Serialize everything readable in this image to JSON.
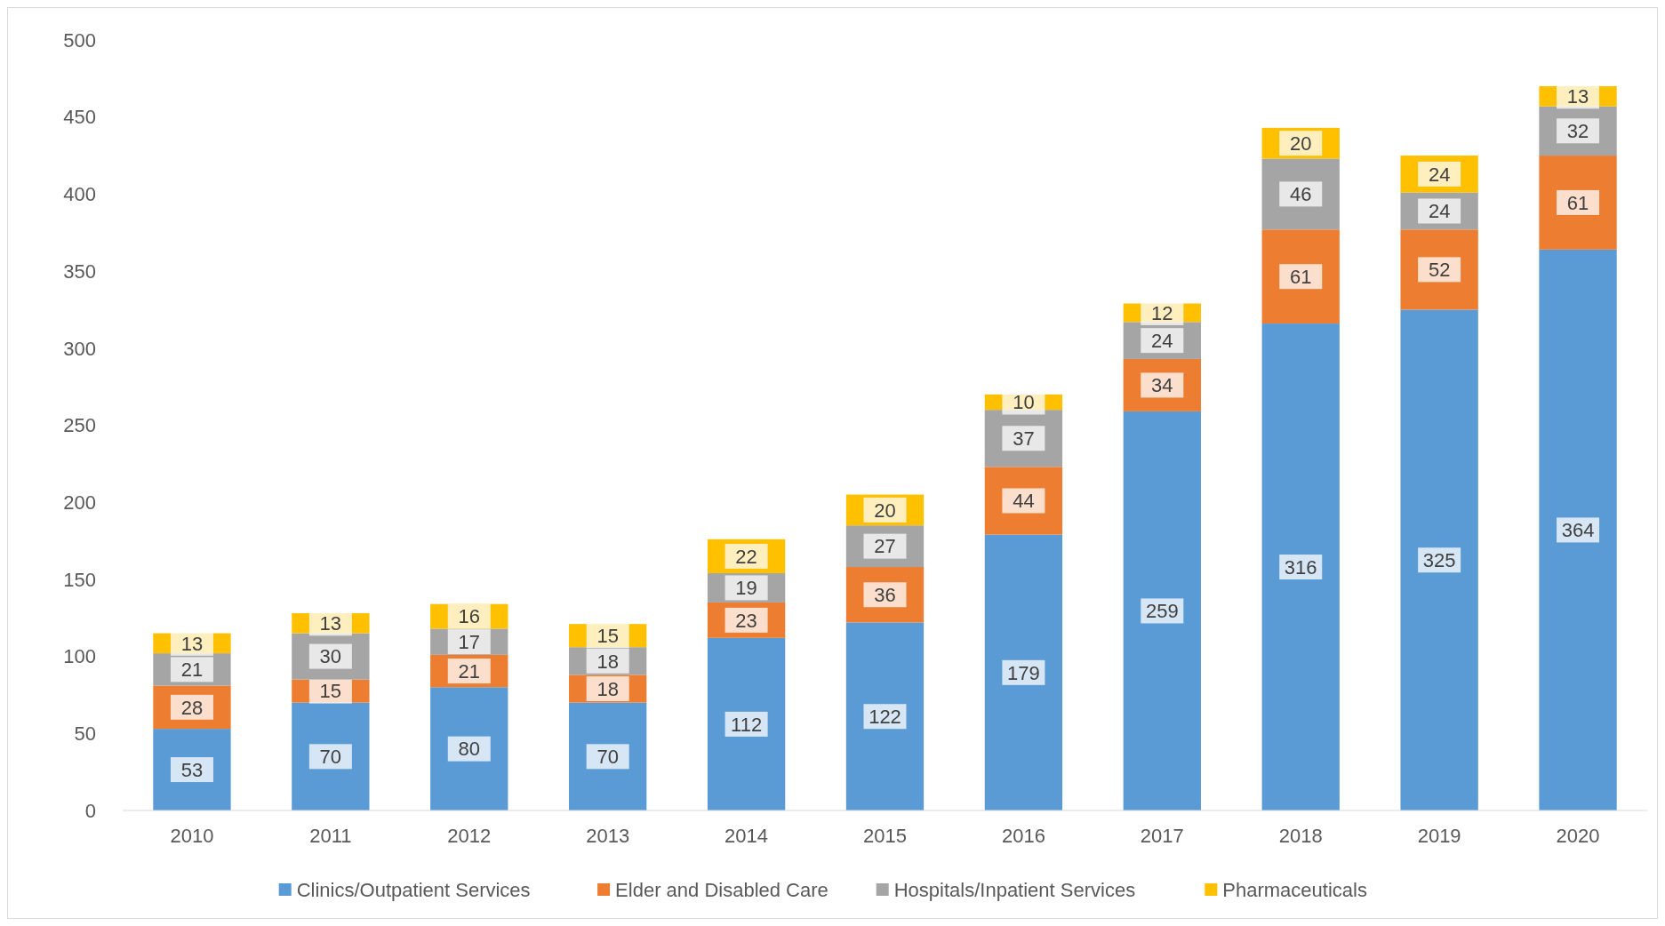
{
  "chart_data": {
    "type": "bar",
    "stacked": true,
    "categories": [
      "2010",
      "2011",
      "2012",
      "2013",
      "2014",
      "2015",
      "2016",
      "2017",
      "2018",
      "2019",
      "2020"
    ],
    "series": [
      {
        "name": "Clinics/Outpatient Services",
        "color": "#5b9bd5",
        "values": [
          53,
          70,
          80,
          70,
          112,
          122,
          179,
          259,
          316,
          325,
          364
        ]
      },
      {
        "name": "Elder and Disabled Care",
        "color": "#ed7d31",
        "values": [
          28,
          15,
          21,
          18,
          23,
          36,
          44,
          34,
          61,
          52,
          61
        ]
      },
      {
        "name": "Hospitals/Inpatient Services",
        "color": "#a5a5a5",
        "values": [
          21,
          30,
          17,
          18,
          19,
          27,
          37,
          24,
          46,
          24,
          32
        ]
      },
      {
        "name": "Pharmaceuticals",
        "color": "#ffc000",
        "values": [
          13,
          13,
          16,
          15,
          22,
          20,
          10,
          12,
          20,
          24,
          13
        ]
      }
    ],
    "ylim": [
      0,
      500
    ],
    "yticks": [
      0,
      50,
      100,
      150,
      200,
      250,
      300,
      350,
      400,
      450,
      500
    ],
    "grid": false,
    "legend": "bottom",
    "data_labels": true
  }
}
